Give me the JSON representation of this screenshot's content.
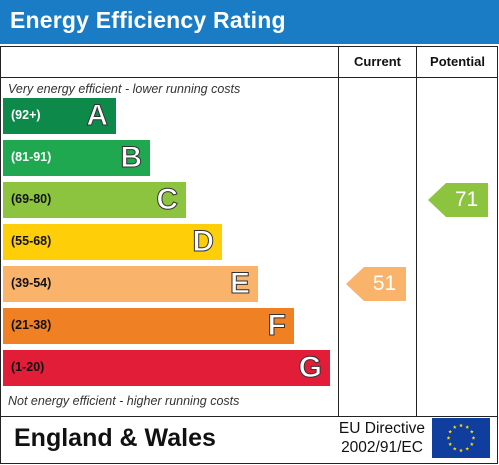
{
  "header": {
    "title": "Energy Efficiency Rating"
  },
  "columns": {
    "current": "Current",
    "potential": "Potential"
  },
  "notes": {
    "top": "Very energy efficient - lower running costs",
    "bottom": "Not energy efficient - higher running costs"
  },
  "chart_data": {
    "type": "bar",
    "title": "Energy Efficiency Rating",
    "bands": [
      {
        "letter": "A",
        "range": "(92+)",
        "min": 92,
        "max": 100,
        "color": "#0d8a4a",
        "range_color": "#ffffff"
      },
      {
        "letter": "B",
        "range": "(81-91)",
        "min": 81,
        "max": 91,
        "color": "#1fa84f",
        "range_color": "#ffffff"
      },
      {
        "letter": "C",
        "range": "(69-80)",
        "min": 69,
        "max": 80,
        "color": "#8cc43f",
        "range_color": "#111111"
      },
      {
        "letter": "D",
        "range": "(55-68)",
        "min": 55,
        "max": 68,
        "color": "#fece08",
        "range_color": "#111111"
      },
      {
        "letter": "E",
        "range": "(39-54)",
        "min": 39,
        "max": 54,
        "color": "#f9b36a",
        "range_color": "#111111"
      },
      {
        "letter": "F",
        "range": "(21-38)",
        "min": 21,
        "max": 38,
        "color": "#f08024",
        "range_color": "#111111"
      },
      {
        "letter": "G",
        "range": "(1-20)",
        "min": 1,
        "max": 20,
        "color": "#e11d38",
        "range_color": "#111111"
      }
    ],
    "current": {
      "value": 51,
      "band": "E",
      "color": "#f9b36a"
    },
    "potential": {
      "value": 71,
      "band": "C",
      "color": "#8cc43f"
    }
  },
  "footer": {
    "country": "England & Wales",
    "directive_line1": "EU Directive",
    "directive_line2": "2002/91/EC"
  },
  "icons": {
    "flag": "eu-flag-icon"
  }
}
